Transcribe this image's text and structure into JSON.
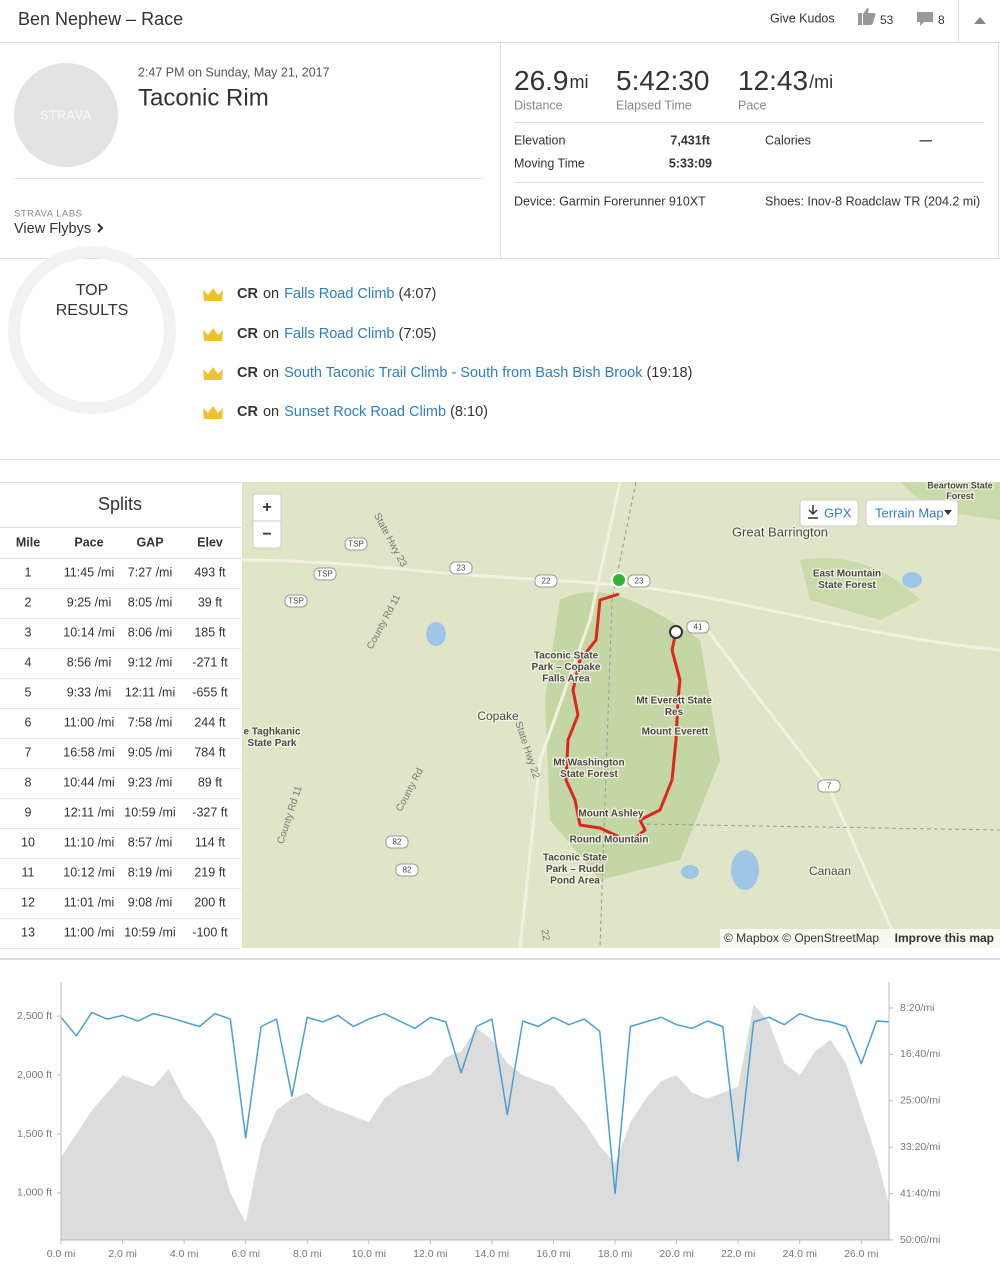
{
  "header": {
    "title": "Ben Nephew – Race",
    "kudos_button": "Give Kudos",
    "kudos_count": 53,
    "comment_count": 8
  },
  "activity": {
    "datetime": "2:47 PM on Sunday, May 21, 2017",
    "name": "Taconic Rim",
    "avatar_text": "STRAVA",
    "labs": "STRAVA LABS",
    "flybys": "View Flybys"
  },
  "stats": {
    "primary": [
      {
        "value": "26.9",
        "unit": "mi",
        "label": "Distance"
      },
      {
        "value": "5:42:30",
        "label": "Elapsed Time"
      },
      {
        "value": "12:43",
        "unit": "/mi",
        "label": "Pace"
      }
    ],
    "secondary": [
      {
        "label": "Elevation",
        "value": "7,431ft"
      },
      {
        "label": "Calories",
        "value": "—"
      },
      {
        "label": "Moving Time",
        "value": "5:33:09"
      }
    ],
    "device": "Device: Garmin Forerunner 910XT",
    "shoes": "Shoes: Inov-8 Roadclaw TR (204.2 mi)"
  },
  "top_results": {
    "title_lines": [
      "TOP",
      "RESULTS"
    ],
    "items": [
      {
        "label": "CR",
        "prep": "on",
        "segment": "Falls Road Climb",
        "time": "(4:07)"
      },
      {
        "label": "CR",
        "prep": "on",
        "segment": "Falls Road Climb",
        "time": "(7:05)"
      },
      {
        "label": "CR",
        "prep": "on",
        "segment": "South Taconic Trail Climb - South from Bash Bish Brook",
        "time": "(19:18)"
      },
      {
        "label": "CR",
        "prep": "on",
        "segment": "Sunset Rock Road Climb",
        "time": "(8:10)"
      }
    ]
  },
  "splits": {
    "title": "Splits",
    "columns": [
      "Mile",
      "Pace",
      "GAP",
      "Elev"
    ],
    "rows": [
      [
        1,
        "11:45 /mi",
        "7:27 /mi",
        "493 ft"
      ],
      [
        2,
        "9:25 /mi",
        "8:05 /mi",
        "39 ft"
      ],
      [
        3,
        "10:14 /mi",
        "8:06 /mi",
        "185 ft"
      ],
      [
        4,
        "8:56 /mi",
        "9:12 /mi",
        "-271 ft"
      ],
      [
        5,
        "9:33 /mi",
        "12:11 /mi",
        "-655 ft"
      ],
      [
        6,
        "11:00 /mi",
        "7:58 /mi",
        "244 ft"
      ],
      [
        7,
        "16:58 /mi",
        "9:05 /mi",
        "784 ft"
      ],
      [
        8,
        "10:44 /mi",
        "9:23 /mi",
        "89 ft"
      ],
      [
        9,
        "12:11 /mi",
        "10:59 /mi",
        "-327 ft"
      ],
      [
        10,
        "11:10 /mi",
        "8:57 /mi",
        "114 ft"
      ],
      [
        11,
        "10:12 /mi",
        "8:19 /mi",
        "219 ft"
      ],
      [
        12,
        "11:01 /mi",
        "9:08 /mi",
        "200 ft"
      ],
      [
        13,
        "11:00 /mi",
        "10:59 /mi",
        "-100 ft"
      ]
    ]
  },
  "map": {
    "zoom_in": "+",
    "zoom_out": "−",
    "gpx": "GPX",
    "layer": "Terrain Map",
    "labels": [
      [
        "Great Barrington"
      ],
      [
        "East Mountain",
        "State Forest"
      ],
      [
        "Beartown State",
        "Forest"
      ],
      [
        "Taconic State",
        "Park – Copake",
        "Falls Area"
      ],
      [
        "Copake"
      ],
      [
        "Mt Everett State",
        "Res"
      ],
      [
        "Mount Everett"
      ],
      [
        "Mt Washington",
        "State Forest"
      ],
      [
        "Mount Ashley"
      ],
      [
        "Round Mountain"
      ],
      [
        "Taconic State",
        "Park – Rudd",
        "Pond Area"
      ],
      [
        "e Taghkanic",
        "State Park"
      ],
      [
        "Canaan"
      ]
    ],
    "roads": [
      "State Hwy 23",
      "County Rd 11",
      "State Hwy 22",
      "County Rd",
      "County Rd 11",
      "22"
    ],
    "shields": [
      "TSP",
      "TSP",
      "TSP",
      "23",
      "23",
      "22",
      "41",
      "7",
      "82",
      "82"
    ],
    "attribution": "© Mapbox © OpenStreetMap",
    "improve": "Improve this map"
  },
  "chart_data": {
    "type": "area",
    "x": [
      0,
      0.5,
      1,
      1.5,
      2,
      2.5,
      3,
      3.5,
      4,
      4.5,
      5,
      5.5,
      6,
      6.5,
      7,
      7.5,
      8,
      8.5,
      9,
      9.5,
      10,
      10.5,
      11,
      11.5,
      12,
      12.5,
      13,
      13.5,
      14,
      14.5,
      15,
      15.5,
      16,
      16.5,
      17,
      17.5,
      18,
      18.5,
      19,
      19.5,
      20,
      20.5,
      21,
      21.5,
      22,
      22.5,
      23,
      23.5,
      24,
      24.5,
      25,
      25.5,
      26,
      26.5,
      26.9
    ],
    "series": [
      {
        "color": "#dcdcdc",
        "values": [
          1300,
          1500,
          1700,
          1850,
          2000,
          1950,
          1900,
          2050,
          1800,
          1650,
          1450,
          1000,
          750,
          1400,
          1700,
          1800,
          1850,
          1750,
          1700,
          1650,
          1600,
          1800,
          1900,
          1950,
          2000,
          2150,
          2200,
          2400,
          2300,
          2100,
          2000,
          1950,
          1900,
          1750,
          1600,
          1400,
          1250,
          1600,
          1800,
          1950,
          2000,
          1850,
          1800,
          1850,
          1900,
          2600,
          2450,
          2100,
          2000,
          2200,
          2300,
          2100,
          1700,
          1300,
          900
        ]
      },
      {
        "color": "#4a9fd4",
        "axis": "y2",
        "values": [
          600,
          800,
          550,
          620,
          580,
          640,
          560,
          600,
          650,
          700,
          560,
          620,
          1900,
          700,
          620,
          1450,
          600,
          650,
          580,
          700,
          620,
          560,
          640,
          720,
          600,
          650,
          1200,
          700,
          620,
          1650,
          640,
          700,
          600,
          680,
          620,
          750,
          2500,
          700,
          650,
          600,
          680,
          720,
          640,
          700,
          2150,
          650,
          600,
          680,
          560,
          620,
          650,
          700,
          1100,
          640,
          650
        ]
      }
    ],
    "xlim": [
      0,
      26.9
    ],
    "xticks": [
      {
        "value": 0,
        "label": "0.0 mi"
      },
      {
        "value": 2,
        "label": "2.0 mi"
      },
      {
        "value": 4,
        "label": "4.0 mi"
      },
      {
        "value": 6,
        "label": "6.0 mi"
      },
      {
        "value": 8,
        "label": "8.0 mi"
      },
      {
        "value": 10,
        "label": "10.0 mi"
      },
      {
        "value": 12,
        "label": "12.0 mi"
      },
      {
        "value": 14,
        "label": "14.0 mi"
      },
      {
        "value": 16,
        "label": "16.0 mi"
      },
      {
        "value": 18,
        "label": "18.0 mi"
      },
      {
        "value": 20,
        "label": "20.0 mi"
      },
      {
        "value": 22,
        "label": "22.0 mi"
      },
      {
        "value": 24,
        "label": "24.0 mi"
      },
      {
        "value": 26,
        "label": "26.0 mi"
      }
    ],
    "ylim": [
      600,
      2790
    ],
    "yticks": [
      {
        "value": 1000,
        "label": "1,000 ft"
      },
      {
        "value": 1500,
        "label": "1,500 ft"
      },
      {
        "value": 2000,
        "label": "2,000 ft"
      },
      {
        "value": 2500,
        "label": "2,500 ft"
      }
    ],
    "y2lim": [
      3000,
      220
    ],
    "y2ticks": [
      {
        "value": 500,
        "label": "8:20/mi"
      },
      {
        "value": 1000,
        "label": "16:40/mi"
      },
      {
        "value": 1500,
        "label": "25:00/mi"
      },
      {
        "value": 2000,
        "label": "33:20/mi"
      },
      {
        "value": 2500,
        "label": "41:40/mi"
      },
      {
        "value": 3000,
        "label": "50:00/mi"
      }
    ]
  }
}
